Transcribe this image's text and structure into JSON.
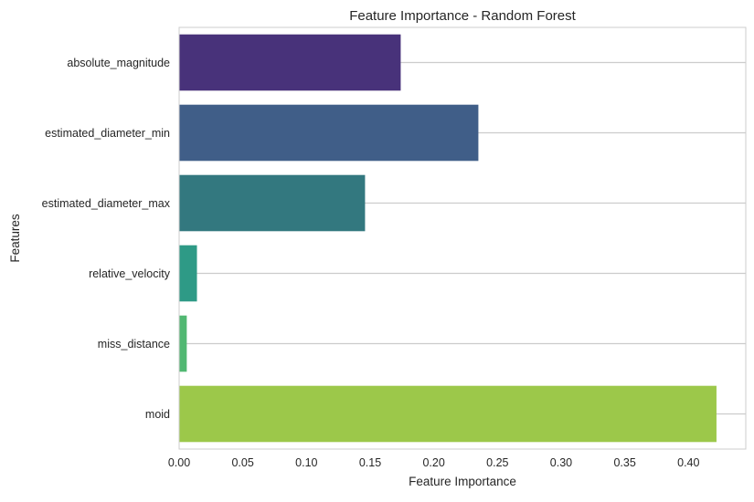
{
  "chart_data": {
    "type": "bar",
    "orientation": "horizontal",
    "title": "Feature Importance - Random Forest",
    "xlabel": "Feature Importance",
    "ylabel": "Features",
    "categories": [
      "absolute_magnitude",
      "estimated_diameter_min",
      "estimated_diameter_max",
      "relative_velocity",
      "miss_distance",
      "moid"
    ],
    "values": [
      0.174,
      0.235,
      0.146,
      0.014,
      0.006,
      0.422
    ],
    "colors": [
      "#48327a",
      "#405e88",
      "#33787f",
      "#2e9a86",
      "#51b872",
      "#9cc84a"
    ],
    "xlim": [
      0,
      0.445
    ],
    "xticks": [
      0.0,
      0.05,
      0.1,
      0.15,
      0.2,
      0.25,
      0.3,
      0.35,
      0.4
    ],
    "xtick_labels": [
      "0.00",
      "0.05",
      "0.10",
      "0.15",
      "0.20",
      "0.25",
      "0.30",
      "0.35",
      "0.40"
    ],
    "grid": "horizontal",
    "legend": "none"
  }
}
